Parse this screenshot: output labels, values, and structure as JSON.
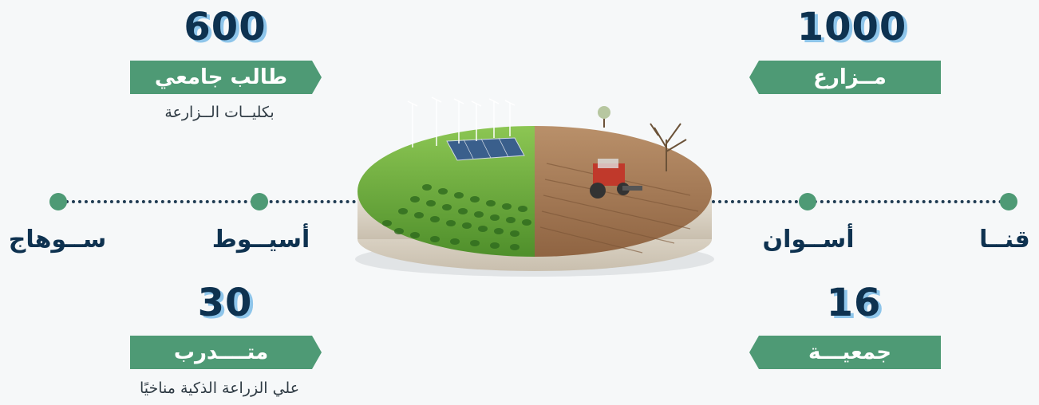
{
  "stats": {
    "students": {
      "value": "600",
      "label": "طالب جامعي",
      "sub": "بكليــات الــزارعة"
    },
    "farmers": {
      "value": "1000",
      "label": "مــزارع"
    },
    "trainees": {
      "value": "30",
      "label": "متــــدرب",
      "sub": "علي الزراعة الذكية مناخيًا"
    },
    "associations": {
      "value": "16",
      "label": "جمعيـــة"
    }
  },
  "governorates": {
    "left": [
      "أسيــوط",
      "ســوهاج"
    ],
    "right": [
      "أســوان",
      "قنــا"
    ]
  },
  "illustration": {
    "description_icon": "farm-disc-illustration-icon",
    "colors": {
      "grass": "#6fae3f",
      "soil": "#a87a55",
      "panel": "#3a5f8c",
      "tractor": "#c0392b"
    }
  },
  "colors": {
    "navy": "#0e3250",
    "green": "#4e9a75",
    "shadow": "#8ec5ea"
  }
}
